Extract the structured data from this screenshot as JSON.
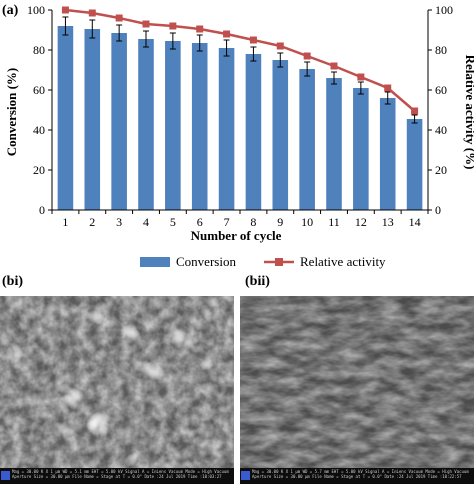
{
  "panels": {
    "a": "(a)",
    "bi": "(bi)",
    "bii": "(bii)"
  },
  "chart_data": {
    "type": "bar",
    "categories": [
      "1",
      "2",
      "3",
      "4",
      "5",
      "6",
      "7",
      "8",
      "9",
      "10",
      "11",
      "12",
      "13",
      "14"
    ],
    "series": [
      {
        "name": "Conversion",
        "type": "bar",
        "axis": "left",
        "color": "#4f81bd",
        "values": [
          92,
          90.5,
          88.5,
          85.5,
          84.5,
          83.5,
          81,
          78,
          75,
          70.5,
          66,
          61,
          56,
          45.5
        ],
        "error": [
          4.5,
          4.5,
          4,
          4,
          4,
          4,
          4,
          3.5,
          3.5,
          3.5,
          3,
          3,
          3,
          2
        ]
      },
      {
        "name": "Relative activity",
        "type": "line",
        "axis": "right",
        "color": "#c0504d",
        "values": [
          100,
          98.5,
          96,
          93,
          92,
          90.5,
          88,
          85,
          82,
          77,
          72,
          66.5,
          61,
          49.5
        ]
      }
    ],
    "xlabel": "Number of cycle",
    "ylabel": "Conversion (%)",
    "y2label": "Relative activity (%)",
    "ylim": [
      0,
      100
    ],
    "y2lim": [
      0,
      100
    ],
    "yticks": [
      0,
      20,
      40,
      60,
      80,
      100
    ],
    "y2ticks": [
      "0",
      "20",
      "40",
      "60",
      "80",
      "100"
    ],
    "legend_position": "bottom",
    "grid": false
  },
  "sem": {
    "bi_info": [
      "Mag = 30.00 K X   1 µm   WD = 5.1 mm   EHT = 5.00 kV   Signal A = InLens   Vacuum Mode = High Vacuum",
      "Aperture Size = 30.00 µm   File Name =   Stage at T = 0.0°   Date :24 Jul 2019   Time :10:03:27"
    ],
    "bii_info": [
      "Mag = 30.00 K X   1 µm   WD = 5.7 mm   EHT = 5.00 kV   Signal A = InLens   Vacuum Mode = High Vacuum",
      "Aperture Size = 30.00 µm   File Name =   Stage at T = 0.0°   Date :24 Jul 2019   Time :10:22:57"
    ]
  }
}
